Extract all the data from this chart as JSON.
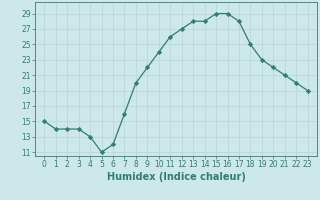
{
  "title": "",
  "xlabel": "Humidex (Indice chaleur)",
  "ylabel": "",
  "x": [
    0,
    1,
    2,
    3,
    4,
    5,
    6,
    7,
    8,
    9,
    10,
    11,
    12,
    13,
    14,
    15,
    16,
    17,
    18,
    19,
    20,
    21,
    22,
    23
  ],
  "y": [
    15,
    14,
    14,
    14,
    13,
    11,
    12,
    16,
    20,
    22,
    24,
    26,
    27,
    28,
    28,
    29,
    29,
    28,
    25,
    23,
    22,
    21,
    20,
    19
  ],
  "ylim": [
    10.5,
    30.5
  ],
  "yticks": [
    11,
    13,
    15,
    17,
    19,
    21,
    23,
    25,
    27,
    29
  ],
  "line_color": "#2e7f6e",
  "marker": "D",
  "marker_size": 2.2,
  "bg_color": "#cde8ea",
  "grid_color": "#b8d5d8",
  "tick_fontsize": 5.5,
  "xlabel_fontsize": 7.0
}
